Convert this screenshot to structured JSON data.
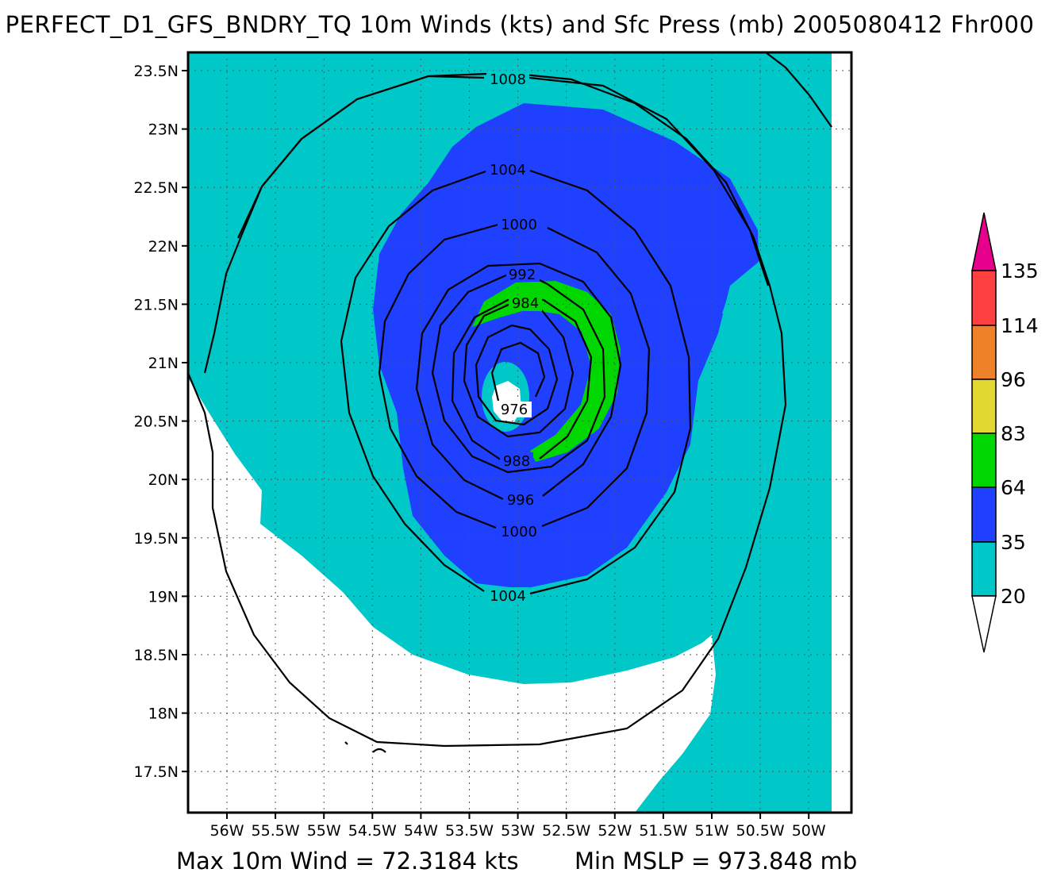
{
  "header": {
    "title": "PERFECT_D1_GFS_BNDRY_TQ 10m Winds (kts) and Sfc Press (mb) 2005080412 Fhr000"
  },
  "footer": {
    "max_wind": "Max 10m Wind = 72.3184 kts",
    "min_mslp": "Min MSLP = 973.848 mb"
  },
  "map": {
    "lat_ticks": [
      "23.5N",
      "23N",
      "22.5N",
      "22N",
      "21.5N",
      "21N",
      "20.5N",
      "20N",
      "19.5N",
      "19N",
      "18.5N",
      "18N",
      "17.5N"
    ],
    "lon_ticks": [
      "56W",
      "55.5W",
      "55W",
      "54.5W",
      "54W",
      "53.5W",
      "53W",
      "52.5W",
      "52W",
      "51.5W",
      "51W",
      "50.5W",
      "50W"
    ],
    "grid": "dotted",
    "isobars": [
      {
        "value": "1008",
        "label": "1008"
      },
      {
        "value": "1004",
        "label": "1004"
      },
      {
        "value": "1004",
        "label": "1004"
      },
      {
        "value": "1000",
        "label": "1000"
      },
      {
        "value": "1000",
        "label": "1000"
      },
      {
        "value": "996",
        "label": "996"
      },
      {
        "value": "992",
        "label": "992"
      },
      {
        "value": "988",
        "label": "988"
      },
      {
        "value": "984",
        "label": "984"
      },
      {
        "value": "976",
        "label": "976"
      }
    ]
  },
  "colorbar": {
    "labels": [
      "135",
      "114",
      "96",
      "83",
      "64",
      "35",
      "20"
    ],
    "colors": {
      "above_135": "#e6008c",
      "114_135": "#ff4040",
      "96_114": "#ef8128",
      "83_96": "#e1d832",
      "64_83": "#00d700",
      "35_64": "#2040ff",
      "20_35": "#00c8c8",
      "below_20": "#ffffff"
    }
  }
}
